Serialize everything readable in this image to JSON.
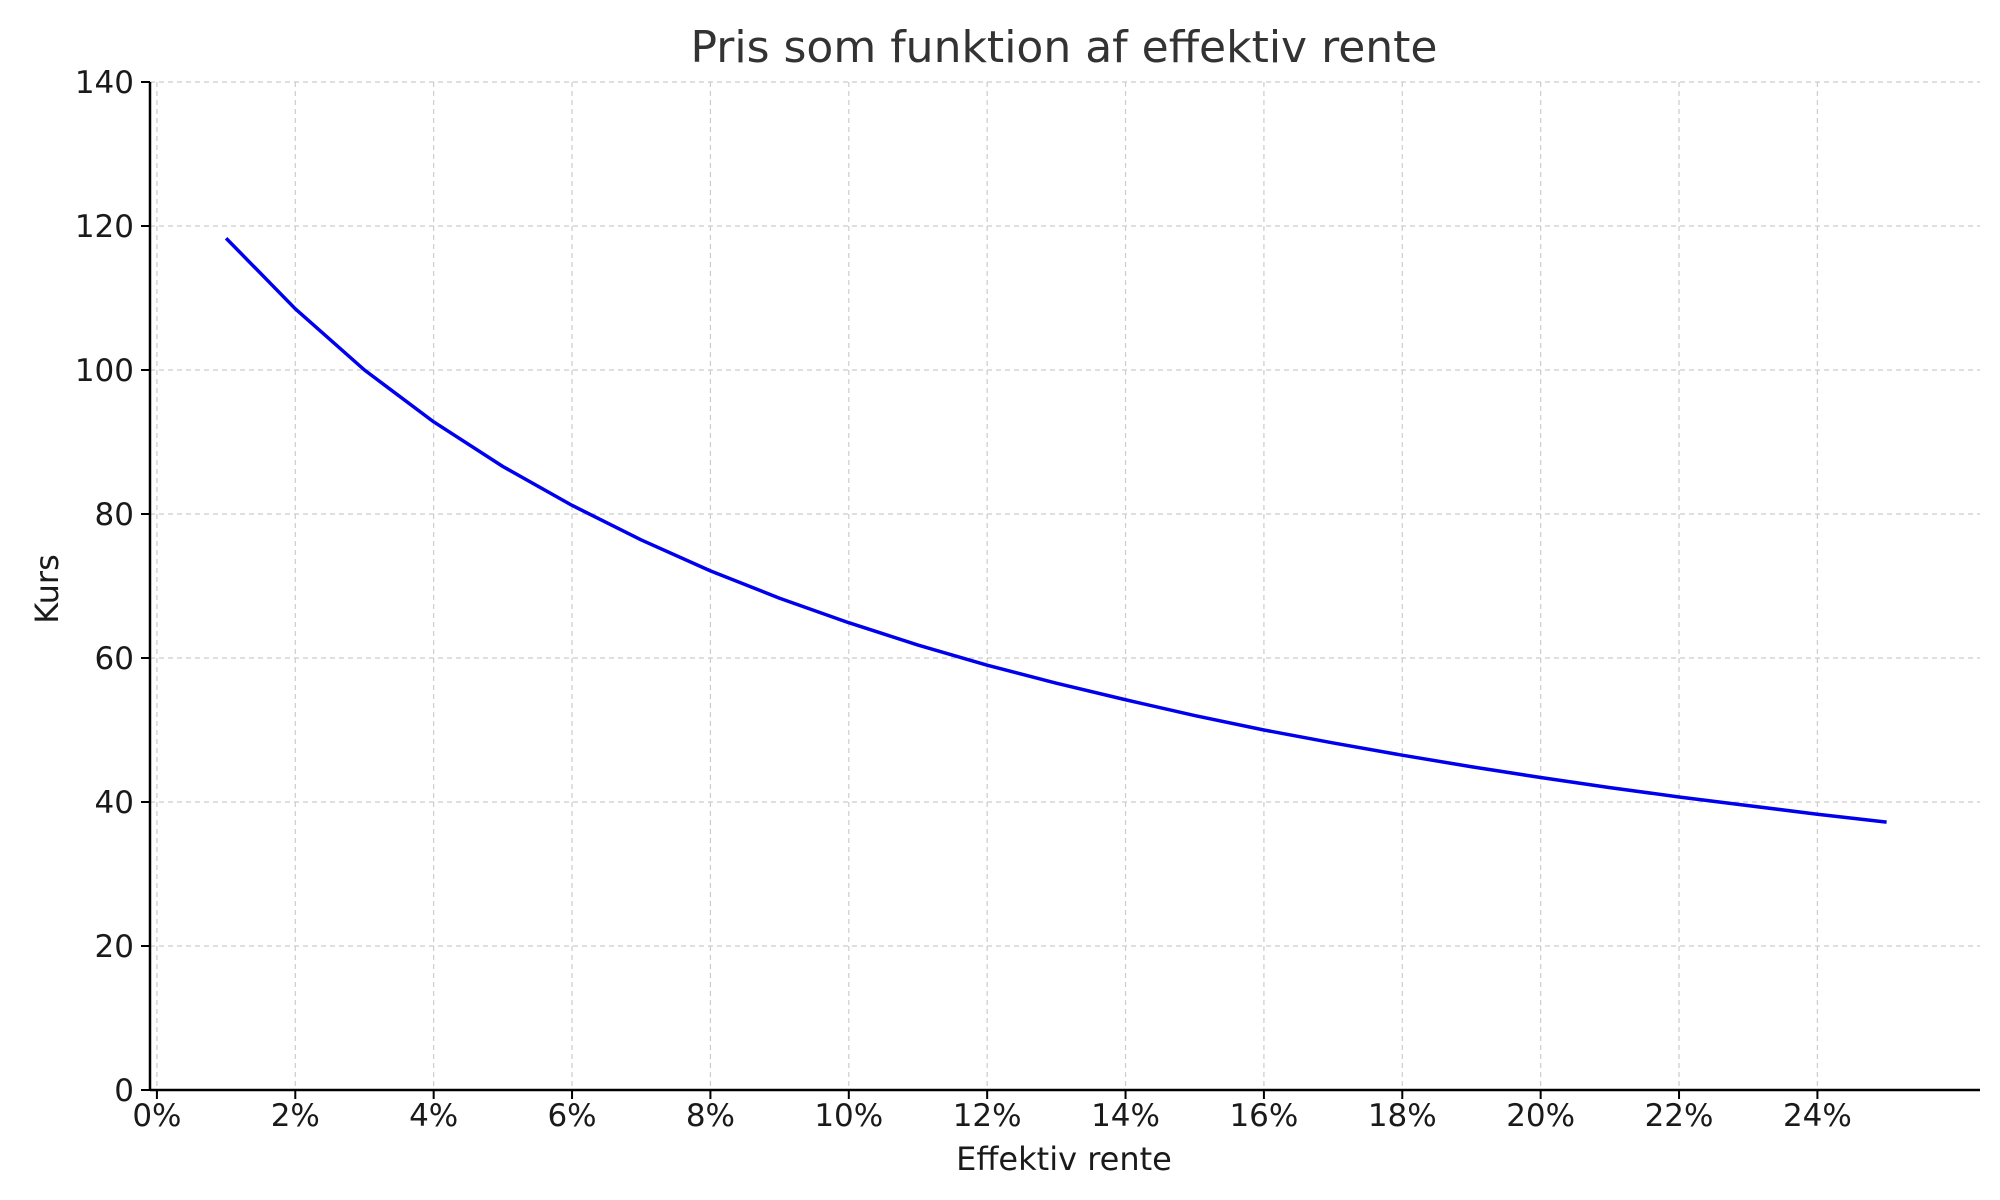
{
  "chart_data": {
    "type": "line",
    "title": "Pris som funktion af effektiv rente",
    "xlabel": "Effektiv rente",
    "ylabel": "Kurs",
    "xlim": [
      -0.001,
      0.2635
    ],
    "ylim": [
      0,
      140
    ],
    "x_ticks": [
      0,
      0.02,
      0.04,
      0.06,
      0.08,
      0.1,
      0.12,
      0.14,
      0.16,
      0.18,
      0.2,
      0.22,
      0.24
    ],
    "x_tick_labels": [
      "0%",
      "2%",
      "4%",
      "6%",
      "8%",
      "10%",
      "12%",
      "14%",
      "16%",
      "18%",
      "20%",
      "22%",
      "24%"
    ],
    "y_ticks": [
      0,
      20,
      40,
      60,
      80,
      100,
      120,
      140
    ],
    "y_tick_labels": [
      "0",
      "20",
      "40",
      "60",
      "80",
      "100",
      "120",
      "140"
    ],
    "grid": true,
    "series": [
      {
        "color": "#0000ee",
        "x": [
          0.01,
          0.02,
          0.03,
          0.04,
          0.05,
          0.06,
          0.07,
          0.08,
          0.09,
          0.1,
          0.11,
          0.12,
          0.13,
          0.14,
          0.15,
          0.16,
          0.17,
          0.18,
          0.19,
          0.2,
          0.21,
          0.22,
          0.23,
          0.24,
          0.25
        ],
        "y": [
          118.3,
          108.5,
          100.0,
          92.8,
          86.6,
          81.2,
          76.4,
          72.1,
          68.3,
          64.9,
          61.8,
          59.0,
          56.5,
          54.2,
          52.0,
          50.0,
          48.2,
          46.5,
          44.9,
          43.4,
          42.0,
          40.7,
          39.5,
          38.3,
          37.2
        ]
      }
    ]
  }
}
